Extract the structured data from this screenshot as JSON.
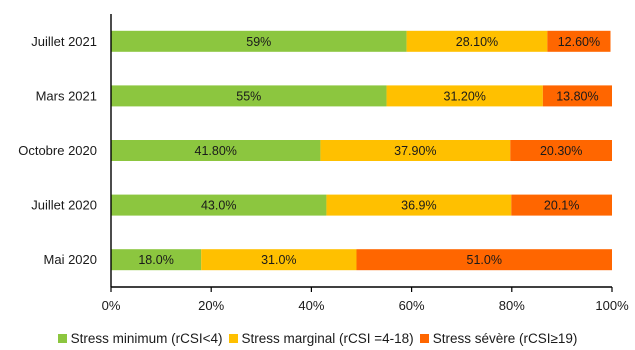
{
  "chart_data": {
    "type": "bar",
    "orientation": "horizontal",
    "stacked": true,
    "title": "",
    "xlabel": "",
    "ylabel": "",
    "xlim": [
      0,
      100
    ],
    "x_ticks": [
      "0%",
      "20%",
      "40%",
      "60%",
      "80%",
      "100%"
    ],
    "grid": false,
    "legend_position": "bottom",
    "categories": [
      "Juillet 2021",
      "Mars 2021",
      "Octobre 2020",
      "Juillet 2020",
      "Mai 2020"
    ],
    "series": [
      {
        "name": "Stress minimum (rCSI<4)",
        "color": "#8CC63F",
        "values": [
          59,
          55,
          41.8,
          43.0,
          18.0
        ],
        "labels": [
          "59%",
          "55%",
          "41.80%",
          "43.0%",
          "18.0%"
        ]
      },
      {
        "name": "Stress marginal (rCSI =4-18)",
        "color": "#FFC000",
        "values": [
          28.1,
          31.2,
          37.9,
          36.9,
          31.0
        ],
        "labels": [
          "28.10%",
          "31.20%",
          "37.90%",
          "36.9%",
          "31.0%"
        ]
      },
      {
        "name": "Stress sévère  (rCSI≥19)",
        "color": "#FF6600",
        "values": [
          12.6,
          13.8,
          20.3,
          20.1,
          51.0
        ],
        "labels": [
          "12.60%",
          "13.80%",
          "20.30%",
          "20.1%",
          "51.0%"
        ]
      }
    ]
  }
}
